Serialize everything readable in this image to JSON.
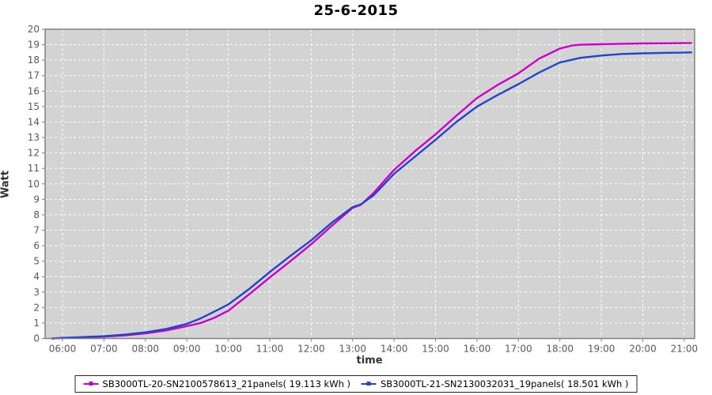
{
  "chart": {
    "title": "25-6-2015",
    "x_axis_title": "time",
    "y_axis_title": "Watt"
  },
  "chart_data": {
    "type": "line",
    "title": "25-6-2015",
    "xlabel": "time",
    "ylabel": "Watt",
    "x_domain_hours": [
      5.58,
      21.25
    ],
    "ylim": [
      0,
      20
    ],
    "y_tick_step": 1,
    "x_tick_hours": [
      6,
      7,
      8,
      9,
      10,
      11,
      12,
      13,
      14,
      15,
      16,
      17,
      18,
      19,
      20,
      21
    ],
    "x_tick_labels": [
      "06:00",
      "07:00",
      "08:00",
      "09:00",
      "10:00",
      "11:00",
      "12:00",
      "13:00",
      "14:00",
      "15:00",
      "16:00",
      "17:00",
      "18:00",
      "19:00",
      "20:00",
      "21:00"
    ],
    "grid": true,
    "legend_position": "bottom",
    "plot_colors": {
      "plot_background": "#D3D3D3",
      "gridline": "#FFFFFF",
      "plot_border": "#808080",
      "tick_label": "#595959",
      "tick_mark": "#808080"
    },
    "series": [
      {
        "name": "SB3000TL-20-SN2100578613_21panels( 19.113 kWh )",
        "total_kwh": 19.113,
        "color": "#CC00CC",
        "points": [
          [
            5.75,
            0.0
          ],
          [
            6.0,
            0.03
          ],
          [
            6.5,
            0.07
          ],
          [
            7.0,
            0.12
          ],
          [
            7.5,
            0.2
          ],
          [
            8.0,
            0.33
          ],
          [
            8.5,
            0.52
          ],
          [
            9.0,
            0.8
          ],
          [
            9.33,
            1.0
          ],
          [
            9.67,
            1.35
          ],
          [
            10.0,
            1.8
          ],
          [
            10.5,
            2.85
          ],
          [
            11.0,
            3.95
          ],
          [
            11.5,
            5.0
          ],
          [
            12.0,
            6.1
          ],
          [
            12.5,
            7.3
          ],
          [
            13.0,
            8.45
          ],
          [
            13.2,
            8.65
          ],
          [
            13.5,
            9.4
          ],
          [
            14.0,
            10.9
          ],
          [
            14.5,
            12.1
          ],
          [
            15.0,
            13.2
          ],
          [
            15.5,
            14.4
          ],
          [
            16.0,
            15.55
          ],
          [
            16.5,
            16.4
          ],
          [
            17.0,
            17.15
          ],
          [
            17.5,
            18.1
          ],
          [
            18.0,
            18.75
          ],
          [
            18.3,
            18.95
          ],
          [
            18.5,
            19.0
          ],
          [
            19.0,
            19.03
          ],
          [
            19.5,
            19.06
          ],
          [
            20.0,
            19.08
          ],
          [
            20.5,
            19.09
          ],
          [
            21.0,
            19.1
          ],
          [
            21.17,
            19.113
          ]
        ]
      },
      {
        "name": "SB3000TL-21-SN2130032031_19panels( 18.501 kWh )",
        "total_kwh": 18.501,
        "color": "#2244CC",
        "points": [
          [
            5.75,
            0.0
          ],
          [
            6.0,
            0.04
          ],
          [
            6.5,
            0.09
          ],
          [
            7.0,
            0.15
          ],
          [
            7.5,
            0.25
          ],
          [
            8.0,
            0.4
          ],
          [
            8.5,
            0.62
          ],
          [
            9.0,
            0.95
          ],
          [
            9.33,
            1.3
          ],
          [
            9.67,
            1.75
          ],
          [
            10.0,
            2.2
          ],
          [
            10.5,
            3.2
          ],
          [
            11.0,
            4.3
          ],
          [
            11.5,
            5.35
          ],
          [
            12.0,
            6.35
          ],
          [
            12.5,
            7.5
          ],
          [
            13.0,
            8.5
          ],
          [
            13.2,
            8.68
          ],
          [
            13.5,
            9.25
          ],
          [
            14.0,
            10.65
          ],
          [
            14.5,
            11.75
          ],
          [
            15.0,
            12.85
          ],
          [
            15.5,
            14.0
          ],
          [
            16.0,
            15.0
          ],
          [
            16.5,
            15.75
          ],
          [
            17.0,
            16.45
          ],
          [
            17.5,
            17.2
          ],
          [
            18.0,
            17.85
          ],
          [
            18.5,
            18.15
          ],
          [
            19.0,
            18.3
          ],
          [
            19.5,
            18.4
          ],
          [
            20.0,
            18.44
          ],
          [
            20.5,
            18.47
          ],
          [
            21.0,
            18.49
          ],
          [
            21.17,
            18.501
          ]
        ]
      }
    ]
  }
}
